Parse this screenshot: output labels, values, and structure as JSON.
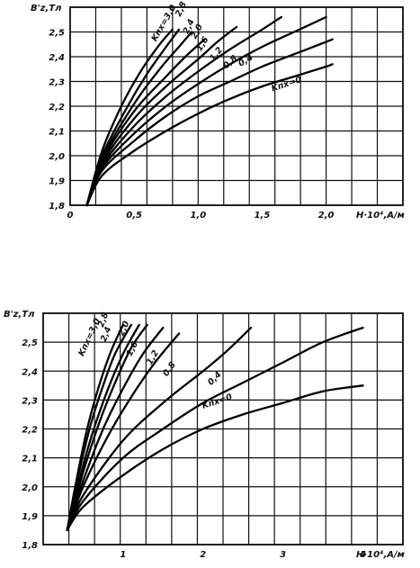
{
  "chart_data": [
    {
      "type": "line",
      "ylabel": "B'z,Тл",
      "xlabel": "H·10⁴,A/м",
      "xlim": [
        0,
        2.6
      ],
      "ylim": [
        1.8,
        2.6
      ],
      "x_ticks": [
        "0",
        "0,5",
        "1,0",
        "1,5",
        "2,0"
      ],
      "x_tick_values": [
        0,
        0.5,
        1.0,
        1.5,
        2.0
      ],
      "y_ticks": [
        "1,8",
        "1,9",
        "2,0",
        "2,1",
        "2,2",
        "2,3",
        "2,4",
        "2,5"
      ],
      "y_tick_values": [
        1.8,
        1.9,
        2.0,
        2.1,
        2.2,
        2.3,
        2.4,
        2.5
      ],
      "grid": true,
      "series": [
        {
          "name": "Kпх = 0",
          "label": "Kпх=0",
          "x": [
            0.13,
            0.25,
            0.5,
            0.75,
            1.0,
            1.25,
            1.5,
            1.75,
            2.0,
            2.05
          ],
          "y": [
            1.8,
            1.92,
            2.02,
            2.1,
            2.17,
            2.23,
            2.28,
            2.32,
            2.36,
            2.37
          ]
        },
        {
          "name": "0,4",
          "label": "0,4",
          "x": [
            0.13,
            0.25,
            0.5,
            0.75,
            1.0,
            1.25,
            1.5,
            1.75,
            2.0,
            2.05
          ],
          "y": [
            1.8,
            1.94,
            2.06,
            2.16,
            2.24,
            2.3,
            2.36,
            2.41,
            2.46,
            2.47
          ]
        },
        {
          "name": "0,8",
          "label": "0,8",
          "x": [
            0.13,
            0.25,
            0.5,
            0.75,
            1.0,
            1.25,
            1.5,
            1.75,
            2.0
          ],
          "y": [
            1.8,
            1.95,
            2.09,
            2.2,
            2.29,
            2.37,
            2.44,
            2.5,
            2.56
          ]
        },
        {
          "name": "1,2",
          "label": "1,2",
          "x": [
            0.13,
            0.25,
            0.5,
            0.75,
            1.0,
            1.25,
            1.5,
            1.65
          ],
          "y": [
            1.8,
            1.96,
            2.12,
            2.24,
            2.34,
            2.43,
            2.51,
            2.56
          ]
        },
        {
          "name": "1,6",
          "label": "1,6",
          "x": [
            0.13,
            0.25,
            0.5,
            0.75,
            1.0,
            1.15,
            1.3
          ],
          "y": [
            1.8,
            1.97,
            2.15,
            2.28,
            2.39,
            2.46,
            2.52
          ]
        },
        {
          "name": "2,0",
          "label": "2,0",
          "x": [
            0.13,
            0.25,
            0.5,
            0.75,
            0.9,
            1.05
          ],
          "y": [
            1.8,
            1.98,
            2.18,
            2.32,
            2.4,
            2.47
          ]
        },
        {
          "name": "2,4",
          "label": "2,4",
          "x": [
            0.13,
            0.25,
            0.5,
            0.7,
            0.85,
            0.95
          ],
          "y": [
            1.8,
            1.99,
            2.21,
            2.35,
            2.44,
            2.5
          ]
        },
        {
          "name": "2,8",
          "label": "2,8",
          "x": [
            0.13,
            0.25,
            0.45,
            0.6,
            0.75,
            0.85
          ],
          "y": [
            1.8,
            2.0,
            2.2,
            2.33,
            2.44,
            2.51
          ]
        },
        {
          "name": "Kпх = 3,0",
          "label": "Kпх=3,0",
          "x": [
            0.13,
            0.25,
            0.4,
            0.55,
            0.7,
            0.8
          ],
          "y": [
            1.8,
            2.02,
            2.2,
            2.34,
            2.45,
            2.51
          ]
        }
      ]
    },
    {
      "type": "line",
      "ylabel": "B'z,Тл",
      "xlabel": "H·10⁴,A/м",
      "xlim": [
        0,
        4.5
      ],
      "ylim": [
        1.8,
        2.6
      ],
      "x_ticks": [
        "1",
        "2",
        "3",
        "4"
      ],
      "x_tick_values": [
        1,
        2,
        3,
        4
      ],
      "y_ticks": [
        "1,8",
        "1,9",
        "2,0",
        "2,1",
        "2,2",
        "2,3",
        "2,4",
        "2,5"
      ],
      "y_tick_values": [
        1.8,
        1.9,
        2.0,
        2.1,
        2.2,
        2.3,
        2.4,
        2.5
      ],
      "grid": true,
      "series": [
        {
          "name": "Kпх = 0",
          "label": "Kпх=0",
          "x": [
            0.3,
            0.5,
            1.0,
            1.5,
            2.0,
            2.5,
            3.0,
            3.5,
            4.0
          ],
          "y": [
            1.85,
            1.93,
            2.04,
            2.13,
            2.2,
            2.25,
            2.29,
            2.33,
            2.35
          ]
        },
        {
          "name": "0,4",
          "label": "0,4",
          "x": [
            0.3,
            0.5,
            1.0,
            1.5,
            2.0,
            2.5,
            3.0,
            3.5,
            4.0
          ],
          "y": [
            1.85,
            1.95,
            2.1,
            2.2,
            2.29,
            2.36,
            2.43,
            2.5,
            2.55
          ]
        },
        {
          "name": "0,8",
          "label": "0,8",
          "x": [
            0.3,
            0.5,
            1.0,
            1.5,
            2.0,
            2.3,
            2.6
          ],
          "y": [
            1.85,
            1.97,
            2.16,
            2.29,
            2.4,
            2.47,
            2.55
          ]
        },
        {
          "name": "1,2",
          "label": "1,2",
          "x": [
            0.3,
            0.5,
            0.8,
            1.1,
            1.4,
            1.7
          ],
          "y": [
            1.85,
            2.0,
            2.17,
            2.31,
            2.43,
            2.53
          ]
        },
        {
          "name": "1,6",
          "label": "1,6",
          "x": [
            0.3,
            0.5,
            0.75,
            1.0,
            1.25,
            1.5
          ],
          "y": [
            1.85,
            2.02,
            2.2,
            2.34,
            2.46,
            2.55
          ]
        },
        {
          "name": "2,0",
          "label": "2,0",
          "x": [
            0.3,
            0.5,
            0.7,
            0.9,
            1.1,
            1.3
          ],
          "y": [
            1.85,
            2.05,
            2.22,
            2.36,
            2.48,
            2.56
          ]
        },
        {
          "name": "2,4",
          "label": "2,4",
          "x": [
            0.3,
            0.45,
            0.6,
            0.8,
            1.0,
            1.2
          ],
          "y": [
            1.85,
            2.02,
            2.17,
            2.33,
            2.46,
            2.56
          ]
        },
        {
          "name": "2,8",
          "label": "2,8",
          "x": [
            0.3,
            0.45,
            0.6,
            0.75,
            0.9,
            1.1
          ],
          "y": [
            1.85,
            2.05,
            2.22,
            2.35,
            2.46,
            2.56
          ]
        },
        {
          "name": "Kпх = 3,0",
          "label": "Kпх=3,0",
          "x": [
            0.3,
            0.4,
            0.55,
            0.7,
            0.85,
            1.0
          ],
          "y": [
            1.85,
            2.0,
            2.2,
            2.35,
            2.47,
            2.56
          ]
        }
      ]
    }
  ]
}
